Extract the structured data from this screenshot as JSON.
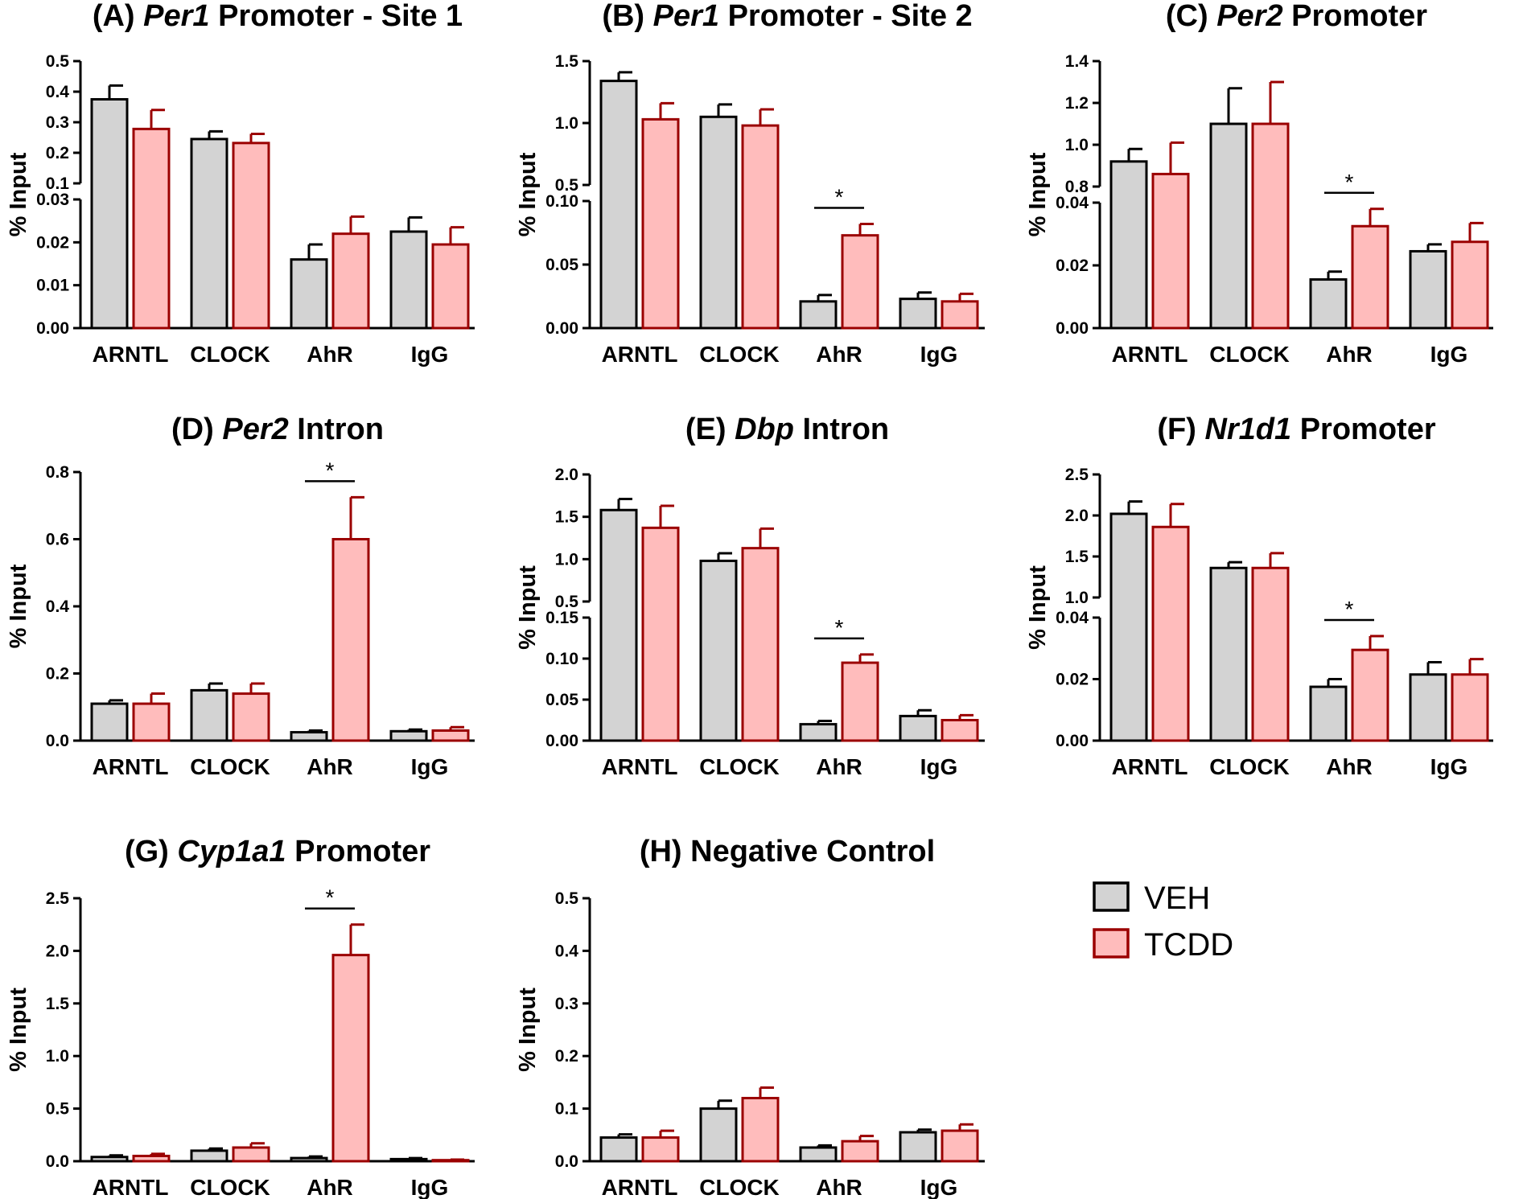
{
  "chart_data": [
    {
      "id": "A",
      "type": "bar",
      "title_prefix": "(A) ",
      "title_italic": "Per1",
      "title_suffix": " Promoter - Site 1",
      "ylabel": "% Input",
      "categories": [
        "ARNTL",
        "CLOCK",
        "AhR",
        "IgG"
      ],
      "axis_break": true,
      "lower": {
        "ylim": [
          0,
          0.03
        ],
        "ticks": [
          "0.00",
          "0.01",
          "0.02",
          "0.03"
        ]
      },
      "upper": {
        "ylim": [
          0.1,
          0.5
        ],
        "ticks": [
          "0.1",
          "0.2",
          "0.3",
          "0.4",
          "0.5"
        ]
      },
      "series": [
        {
          "name": "VEH",
          "values": [
            0.375,
            0.245,
            0.016,
            0.0225
          ],
          "errors": [
            0.045,
            0.025,
            0.0035,
            0.0033
          ]
        },
        {
          "name": "TCDD",
          "values": [
            0.278,
            0.232,
            0.022,
            0.0195
          ],
          "errors": [
            0.062,
            0.03,
            0.004,
            0.004
          ]
        }
      ],
      "significance": []
    },
    {
      "id": "B",
      "type": "bar",
      "title_prefix": "(B) ",
      "title_italic": "Per1",
      "title_suffix": " Promoter - Site 2",
      "ylabel": "% Input",
      "categories": [
        "ARNTL",
        "CLOCK",
        "AhR",
        "IgG"
      ],
      "axis_break": true,
      "lower": {
        "ylim": [
          0,
          0.1
        ],
        "ticks": [
          "0.00",
          "0.05",
          "0.10"
        ]
      },
      "upper": {
        "ylim": [
          0.5,
          1.5
        ],
        "ticks": [
          "0.5",
          "1.0",
          "1.5"
        ]
      },
      "series": [
        {
          "name": "VEH",
          "values": [
            1.34,
            1.05,
            0.021,
            0.023
          ],
          "errors": [
            0.07,
            0.1,
            0.005,
            0.005
          ]
        },
        {
          "name": "TCDD",
          "values": [
            1.03,
            0.98,
            0.073,
            0.021
          ],
          "errors": [
            0.13,
            0.13,
            0.009,
            0.006
          ]
        }
      ],
      "significance": [
        {
          "category": "AhR",
          "label": "*"
        }
      ]
    },
    {
      "id": "C",
      "type": "bar",
      "title_prefix": "(C) ",
      "title_italic": "Per2",
      "title_suffix": " Promoter",
      "ylabel": "% Input",
      "categories": [
        "ARNTL",
        "CLOCK",
        "AhR",
        "IgG"
      ],
      "axis_break": true,
      "lower": {
        "ylim": [
          0,
          0.04
        ],
        "ticks": [
          "0.00",
          "0.02",
          "0.04"
        ]
      },
      "upper": {
        "ylim": [
          0.8,
          1.4
        ],
        "ticks": [
          "0.8",
          "1.0",
          "1.2",
          "1.4"
        ]
      },
      "series": [
        {
          "name": "VEH",
          "values": [
            0.92,
            1.1,
            0.0155,
            0.0245
          ],
          "errors": [
            0.06,
            0.17,
            0.0025,
            0.0022
          ]
        },
        {
          "name": "TCDD",
          "values": [
            0.86,
            1.1,
            0.0325,
            0.0275
          ],
          "errors": [
            0.15,
            0.2,
            0.0055,
            0.006
          ]
        }
      ],
      "significance": [
        {
          "category": "AhR",
          "label": "*"
        }
      ]
    },
    {
      "id": "D",
      "type": "bar",
      "title_prefix": "(D) ",
      "title_italic": "Per2",
      "title_suffix": " Intron",
      "ylabel": "% Input",
      "categories": [
        "ARNTL",
        "CLOCK",
        "AhR",
        "IgG"
      ],
      "axis_break": false,
      "main": {
        "ylim": [
          0,
          0.8
        ],
        "ticks": [
          "0.0",
          "0.2",
          "0.4",
          "0.6",
          "0.8"
        ]
      },
      "series": [
        {
          "name": "VEH",
          "values": [
            0.11,
            0.15,
            0.025,
            0.028
          ],
          "errors": [
            0.01,
            0.02,
            0.005,
            0.005
          ]
        },
        {
          "name": "TCDD",
          "values": [
            0.11,
            0.14,
            0.6,
            0.03
          ],
          "errors": [
            0.03,
            0.03,
            0.125,
            0.01
          ]
        }
      ],
      "significance": [
        {
          "category": "AhR",
          "label": "*"
        }
      ]
    },
    {
      "id": "E",
      "type": "bar",
      "title_prefix": "(E) ",
      "title_italic": "Dbp",
      "title_suffix": " Intron",
      "ylabel": "% Input",
      "categories": [
        "ARNTL",
        "CLOCK",
        "AhR",
        "IgG"
      ],
      "axis_break": true,
      "lower": {
        "ylim": [
          0,
          0.15
        ],
        "ticks": [
          "0.00",
          "0.05",
          "0.10",
          "0.15"
        ]
      },
      "upper": {
        "ylim": [
          0.5,
          2.0
        ],
        "ticks": [
          "0.5",
          "1.0",
          "1.5",
          "2.0"
        ]
      },
      "series": [
        {
          "name": "VEH",
          "values": [
            1.58,
            0.98,
            0.02,
            0.03
          ],
          "errors": [
            0.13,
            0.09,
            0.004,
            0.007
          ]
        },
        {
          "name": "TCDD",
          "values": [
            1.37,
            1.13,
            0.095,
            0.025
          ],
          "errors": [
            0.26,
            0.23,
            0.01,
            0.006
          ]
        }
      ],
      "significance": [
        {
          "category": "AhR",
          "label": "*"
        }
      ]
    },
    {
      "id": "F",
      "type": "bar",
      "title_prefix": "(F) ",
      "title_italic": "Nr1d1",
      "title_suffix": " Promoter",
      "ylabel": "% Input",
      "categories": [
        "ARNTL",
        "CLOCK",
        "AhR",
        "IgG"
      ],
      "axis_break": true,
      "lower": {
        "ylim": [
          0,
          0.04
        ],
        "ticks": [
          "0.00",
          "0.02",
          "0.04"
        ]
      },
      "upper": {
        "ylim": [
          1.0,
          2.5
        ],
        "ticks": [
          "1.0",
          "1.5",
          "2.0",
          "2.5"
        ]
      },
      "series": [
        {
          "name": "VEH",
          "values": [
            2.02,
            1.36,
            0.0175,
            0.0215
          ],
          "errors": [
            0.15,
            0.07,
            0.0025,
            0.004
          ]
        },
        {
          "name": "TCDD",
          "values": [
            1.86,
            1.36,
            0.0295,
            0.0215
          ],
          "errors": [
            0.28,
            0.18,
            0.0045,
            0.005
          ]
        }
      ],
      "significance": [
        {
          "category": "AhR",
          "label": "*"
        }
      ]
    },
    {
      "id": "G",
      "type": "bar",
      "title_prefix": "(G) ",
      "title_italic": "Cyp1a1",
      "title_suffix": " Promoter",
      "ylabel": "% Input",
      "categories": [
        "ARNTL",
        "CLOCK",
        "AhR",
        "IgG"
      ],
      "axis_break": false,
      "main": {
        "ylim": [
          0,
          2.5
        ],
        "ticks": [
          "0.0",
          "0.5",
          "1.0",
          "1.5",
          "2.0",
          "2.5"
        ]
      },
      "series": [
        {
          "name": "VEH",
          "values": [
            0.04,
            0.1,
            0.03,
            0.02
          ],
          "errors": [
            0.015,
            0.02,
            0.015,
            0.01
          ]
        },
        {
          "name": "TCDD",
          "values": [
            0.05,
            0.13,
            1.96,
            0.01
          ],
          "errors": [
            0.02,
            0.04,
            0.29,
            0.005
          ]
        }
      ],
      "significance": [
        {
          "category": "AhR",
          "label": "*"
        }
      ]
    },
    {
      "id": "H",
      "type": "bar",
      "title_prefix": "(H) Negative Control",
      "title_italic": "",
      "title_suffix": "",
      "ylabel": "% Input",
      "categories": [
        "ARNTL",
        "CLOCK",
        "AhR",
        "IgG"
      ],
      "axis_break": false,
      "main": {
        "ylim": [
          0,
          0.5
        ],
        "ticks": [
          "0.0",
          "0.1",
          "0.2",
          "0.3",
          "0.4",
          "0.5"
        ]
      },
      "series": [
        {
          "name": "VEH",
          "values": [
            0.045,
            0.1,
            0.026,
            0.055
          ],
          "errors": [
            0.006,
            0.015,
            0.004,
            0.005
          ]
        },
        {
          "name": "TCDD",
          "values": [
            0.045,
            0.12,
            0.038,
            0.058
          ],
          "errors": [
            0.013,
            0.02,
            0.01,
            0.012
          ]
        }
      ],
      "significance": []
    }
  ],
  "legend": {
    "entries": [
      {
        "label": "VEH",
        "fill": "#d3d3d3",
        "stroke": "#000000"
      },
      {
        "label": "TCDD",
        "fill": "#ffbcbc",
        "stroke": "#9b0000"
      }
    ]
  },
  "colors": {
    "veh_fill": "#d3d3d3",
    "veh_stroke": "#000000",
    "tcdd_fill": "#ffbcbc",
    "tcdd_stroke": "#9b0000"
  }
}
